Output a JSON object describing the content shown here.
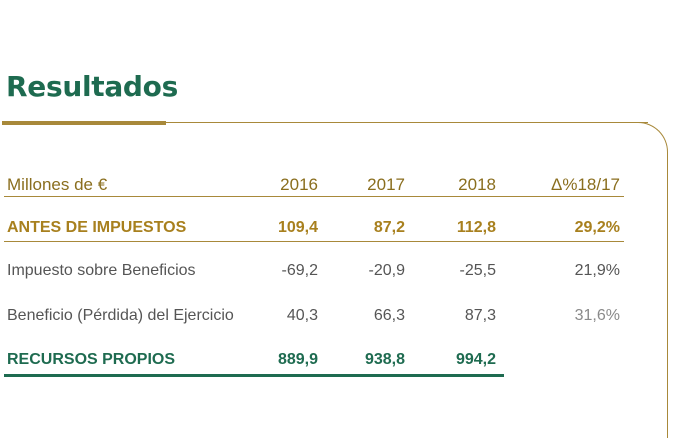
{
  "title": "Resultados",
  "colors": {
    "green": "#1e6b50",
    "gold": "#a8893a"
  },
  "table": {
    "header": {
      "label": "Millones de €",
      "y2016": "2016",
      "y2017": "2017",
      "y2018": "2018",
      "delta": "Δ%18/17"
    },
    "rows": [
      {
        "label": "ANTES DE IMPUESTOS",
        "y2016": "109,4",
        "y2017": "87,2",
        "y2018": "112,8",
        "delta": "29,2%"
      },
      {
        "label": "Impuesto sobre Beneficios",
        "y2016": "-69,2",
        "y2017": "-20,9",
        "y2018": "-25,5",
        "delta": "21,9%"
      },
      {
        "label": "Beneficio (Pérdida) del Ejercicio",
        "y2016": "40,3",
        "y2017": "66,3",
        "y2018": "87,3",
        "delta": "31,6%"
      },
      {
        "label": "RECURSOS PROPIOS",
        "y2016": "889,9",
        "y2017": "938,8",
        "y2018": "994,2",
        "delta": ""
      }
    ]
  }
}
